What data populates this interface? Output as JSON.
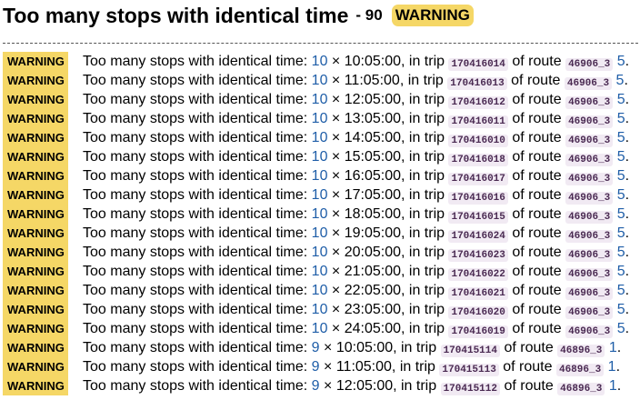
{
  "header": {
    "title": "Too many stops with identical time",
    "count": "- 90",
    "badge": "WARNING"
  },
  "colors": {
    "warning_bg": "#f5d766",
    "link": "#1f5ea8",
    "code_bg": "#f1eaf3"
  },
  "rows": [
    {
      "level": "WARNING",
      "message": "Too many stops with identical time:",
      "count": "10",
      "sep": "×",
      "time_text": "10:05:00, in trip",
      "trip": "170416014",
      "route_prefix": "of route",
      "route": "46906_3",
      "extra": "5",
      "tail": "."
    },
    {
      "level": "WARNING",
      "message": "Too many stops with identical time:",
      "count": "10",
      "sep": "×",
      "time_text": "11:05:00, in trip",
      "trip": "170416013",
      "route_prefix": "of route",
      "route": "46906_3",
      "extra": "5",
      "tail": "."
    },
    {
      "level": "WARNING",
      "message": "Too many stops with identical time:",
      "count": "10",
      "sep": "×",
      "time_text": "12:05:00, in trip",
      "trip": "170416012",
      "route_prefix": "of route",
      "route": "46906_3",
      "extra": "5",
      "tail": "."
    },
    {
      "level": "WARNING",
      "message": "Too many stops with identical time:",
      "count": "10",
      "sep": "×",
      "time_text": "13:05:00, in trip",
      "trip": "170416011",
      "route_prefix": "of route",
      "route": "46906_3",
      "extra": "5",
      "tail": "."
    },
    {
      "level": "WARNING",
      "message": "Too many stops with identical time:",
      "count": "10",
      "sep": "×",
      "time_text": "14:05:00, in trip",
      "trip": "170416010",
      "route_prefix": "of route",
      "route": "46906_3",
      "extra": "5",
      "tail": "."
    },
    {
      "level": "WARNING",
      "message": "Too many stops with identical time:",
      "count": "10",
      "sep": "×",
      "time_text": "15:05:00, in trip",
      "trip": "170416018",
      "route_prefix": "of route",
      "route": "46906_3",
      "extra": "5",
      "tail": "."
    },
    {
      "level": "WARNING",
      "message": "Too many stops with identical time:",
      "count": "10",
      "sep": "×",
      "time_text": "16:05:00, in trip",
      "trip": "170416017",
      "route_prefix": "of route",
      "route": "46906_3",
      "extra": "5",
      "tail": "."
    },
    {
      "level": "WARNING",
      "message": "Too many stops with identical time:",
      "count": "10",
      "sep": "×",
      "time_text": "17:05:00, in trip",
      "trip": "170416016",
      "route_prefix": "of route",
      "route": "46906_3",
      "extra": "5",
      "tail": "."
    },
    {
      "level": "WARNING",
      "message": "Too many stops with identical time:",
      "count": "10",
      "sep": "×",
      "time_text": "18:05:00, in trip",
      "trip": "170416015",
      "route_prefix": "of route",
      "route": "46906_3",
      "extra": "5",
      "tail": "."
    },
    {
      "level": "WARNING",
      "message": "Too many stops with identical time:",
      "count": "10",
      "sep": "×",
      "time_text": "19:05:00, in trip",
      "trip": "170416024",
      "route_prefix": "of route",
      "route": "46906_3",
      "extra": "5",
      "tail": "."
    },
    {
      "level": "WARNING",
      "message": "Too many stops with identical time:",
      "count": "10",
      "sep": "×",
      "time_text": "20:05:00, in trip",
      "trip": "170416023",
      "route_prefix": "of route",
      "route": "46906_3",
      "extra": "5",
      "tail": "."
    },
    {
      "level": "WARNING",
      "message": "Too many stops with identical time:",
      "count": "10",
      "sep": "×",
      "time_text": "21:05:00, in trip",
      "trip": "170416022",
      "route_prefix": "of route",
      "route": "46906_3",
      "extra": "5",
      "tail": "."
    },
    {
      "level": "WARNING",
      "message": "Too many stops with identical time:",
      "count": "10",
      "sep": "×",
      "time_text": "22:05:00, in trip",
      "trip": "170416021",
      "route_prefix": "of route",
      "route": "46906_3",
      "extra": "5",
      "tail": "."
    },
    {
      "level": "WARNING",
      "message": "Too many stops with identical time:",
      "count": "10",
      "sep": "×",
      "time_text": "23:05:00, in trip",
      "trip": "170416020",
      "route_prefix": "of route",
      "route": "46906_3",
      "extra": "5",
      "tail": "."
    },
    {
      "level": "WARNING",
      "message": "Too many stops with identical time:",
      "count": "10",
      "sep": "×",
      "time_text": "24:05:00, in trip",
      "trip": "170416019",
      "route_prefix": "of route",
      "route": "46906_3",
      "extra": "5",
      "tail": "."
    },
    {
      "level": "WARNING",
      "message": "Too many stops with identical time:",
      "count": "9",
      "sep": "×",
      "time_text": "10:05:00, in trip",
      "trip": "170415114",
      "route_prefix": "of route",
      "route": "46896_3",
      "extra": "1",
      "tail": "."
    },
    {
      "level": "WARNING",
      "message": "Too many stops with identical time:",
      "count": "9",
      "sep": "×",
      "time_text": "11:05:00, in trip",
      "trip": "170415113",
      "route_prefix": "of route",
      "route": "46896_3",
      "extra": "1",
      "tail": "."
    },
    {
      "level": "WARNING",
      "message": "Too many stops with identical time:",
      "count": "9",
      "sep": "×",
      "time_text": "12:05:00, in trip",
      "trip": "170415112",
      "route_prefix": "of route",
      "route": "46896_3",
      "extra": "1",
      "tail": "."
    }
  ]
}
